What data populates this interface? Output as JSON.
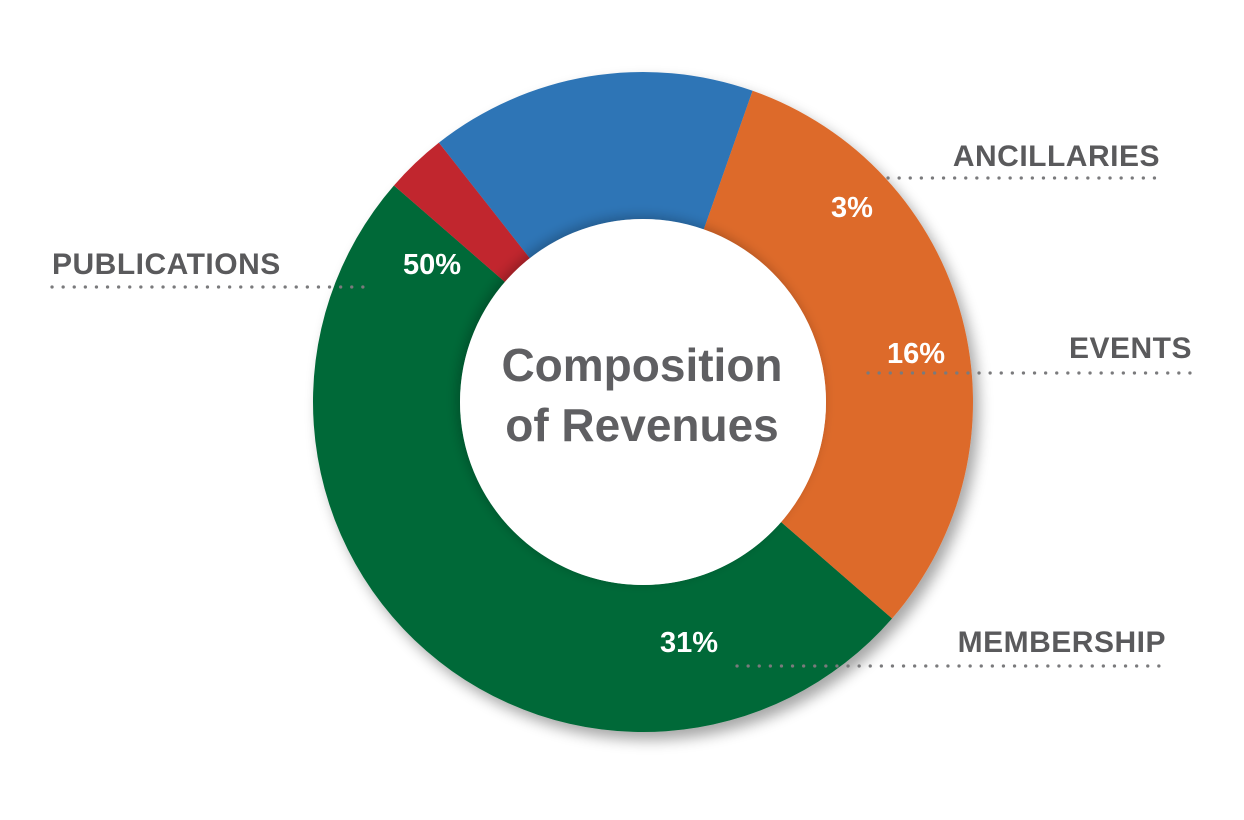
{
  "chart_data": {
    "type": "pie",
    "variant": "donut",
    "title_lines": [
      "Composition",
      "of Revenues"
    ],
    "series": [
      {
        "category": "PUBLICATIONS",
        "value": 50,
        "value_label": "50%",
        "color": "#026937"
      },
      {
        "category": "ANCILLARIES",
        "value": 3,
        "value_label": "3%",
        "color": "#c1272d"
      },
      {
        "category": "EVENTS",
        "value": 16,
        "value_label": "16%",
        "color": "#2e75b6"
      },
      {
        "category": "MEMBERSHIP",
        "value": 31,
        "value_label": "31%",
        "color": "#dd6b2c"
      }
    ],
    "legend": "none",
    "grid": false
  }
}
